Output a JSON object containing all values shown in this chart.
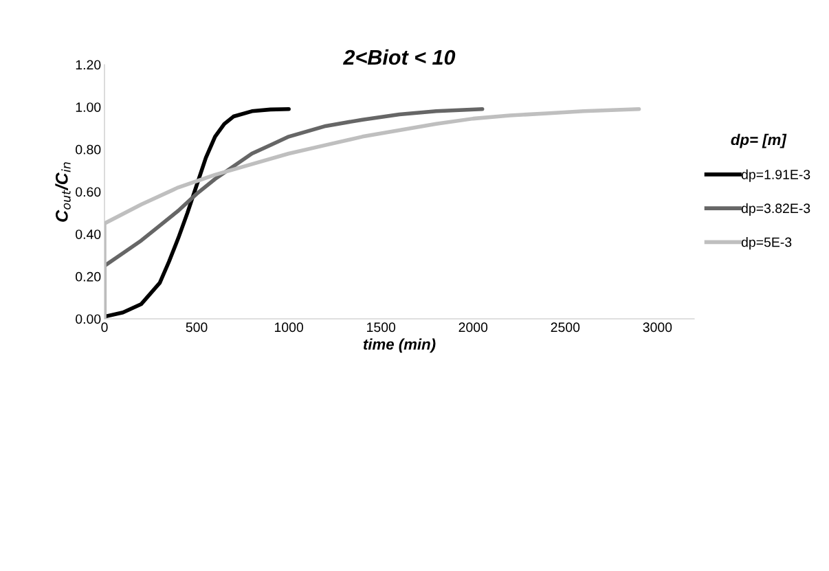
{
  "chart_data": {
    "type": "line",
    "title": "2<Biot < 10",
    "xlabel": "time (min)",
    "ylabel": "C$_{out}$/C$_{in}$",
    "legend_title": "dp= [m]",
    "xlim": [
      0,
      3200
    ],
    "xticks": [
      0,
      500,
      1000,
      1500,
      2000,
      2500,
      3000
    ],
    "ylim": [
      0,
      1.2
    ],
    "yticks": [
      {
        "value": 0,
        "label": "0.00"
      },
      {
        "value": 0.2,
        "label": "0.20"
      },
      {
        "value": 0.4,
        "label": "0.40"
      },
      {
        "value": 0.6,
        "label": "0.60"
      },
      {
        "value": 0.8,
        "label": "0.80"
      },
      {
        "value": 1.0,
        "label": "1.00"
      },
      {
        "value": 1.2,
        "label": "1.20"
      }
    ],
    "grid": false,
    "legend": "right",
    "marker": "none",
    "line_style": "solid",
    "series": [
      {
        "name": "dp=1.91E-3",
        "color": "#000000",
        "x": [
          0,
          100,
          200,
          300,
          350,
          400,
          450,
          500,
          550,
          600,
          650,
          700,
          800,
          900,
          1000
        ],
        "values": [
          0.01,
          0.03,
          0.07,
          0.17,
          0.27,
          0.38,
          0.5,
          0.63,
          0.76,
          0.86,
          0.92,
          0.955,
          0.98,
          0.988,
          0.99
        ]
      },
      {
        "name": "dp=3.82E-3",
        "color": "#666666",
        "x": [
          0,
          0,
          100,
          200,
          300,
          400,
          500,
          600,
          700,
          800,
          900,
          1000,
          1200,
          1400,
          1600,
          1800,
          2050
        ],
        "values": [
          0,
          0.25,
          0.31,
          0.37,
          0.44,
          0.51,
          0.59,
          0.66,
          0.72,
          0.78,
          0.82,
          0.86,
          0.91,
          0.94,
          0.965,
          0.98,
          0.99
        ]
      },
      {
        "name": "dp=5E-3",
        "color": "#bfbfbf",
        "x": [
          0,
          0,
          200,
          400,
          600,
          800,
          1000,
          1200,
          1400,
          1600,
          1800,
          2000,
          2200,
          2400,
          2600,
          2900
        ],
        "values": [
          0,
          0.45,
          0.54,
          0.62,
          0.68,
          0.73,
          0.78,
          0.82,
          0.86,
          0.89,
          0.92,
          0.945,
          0.96,
          0.97,
          0.98,
          0.99
        ]
      }
    ]
  }
}
